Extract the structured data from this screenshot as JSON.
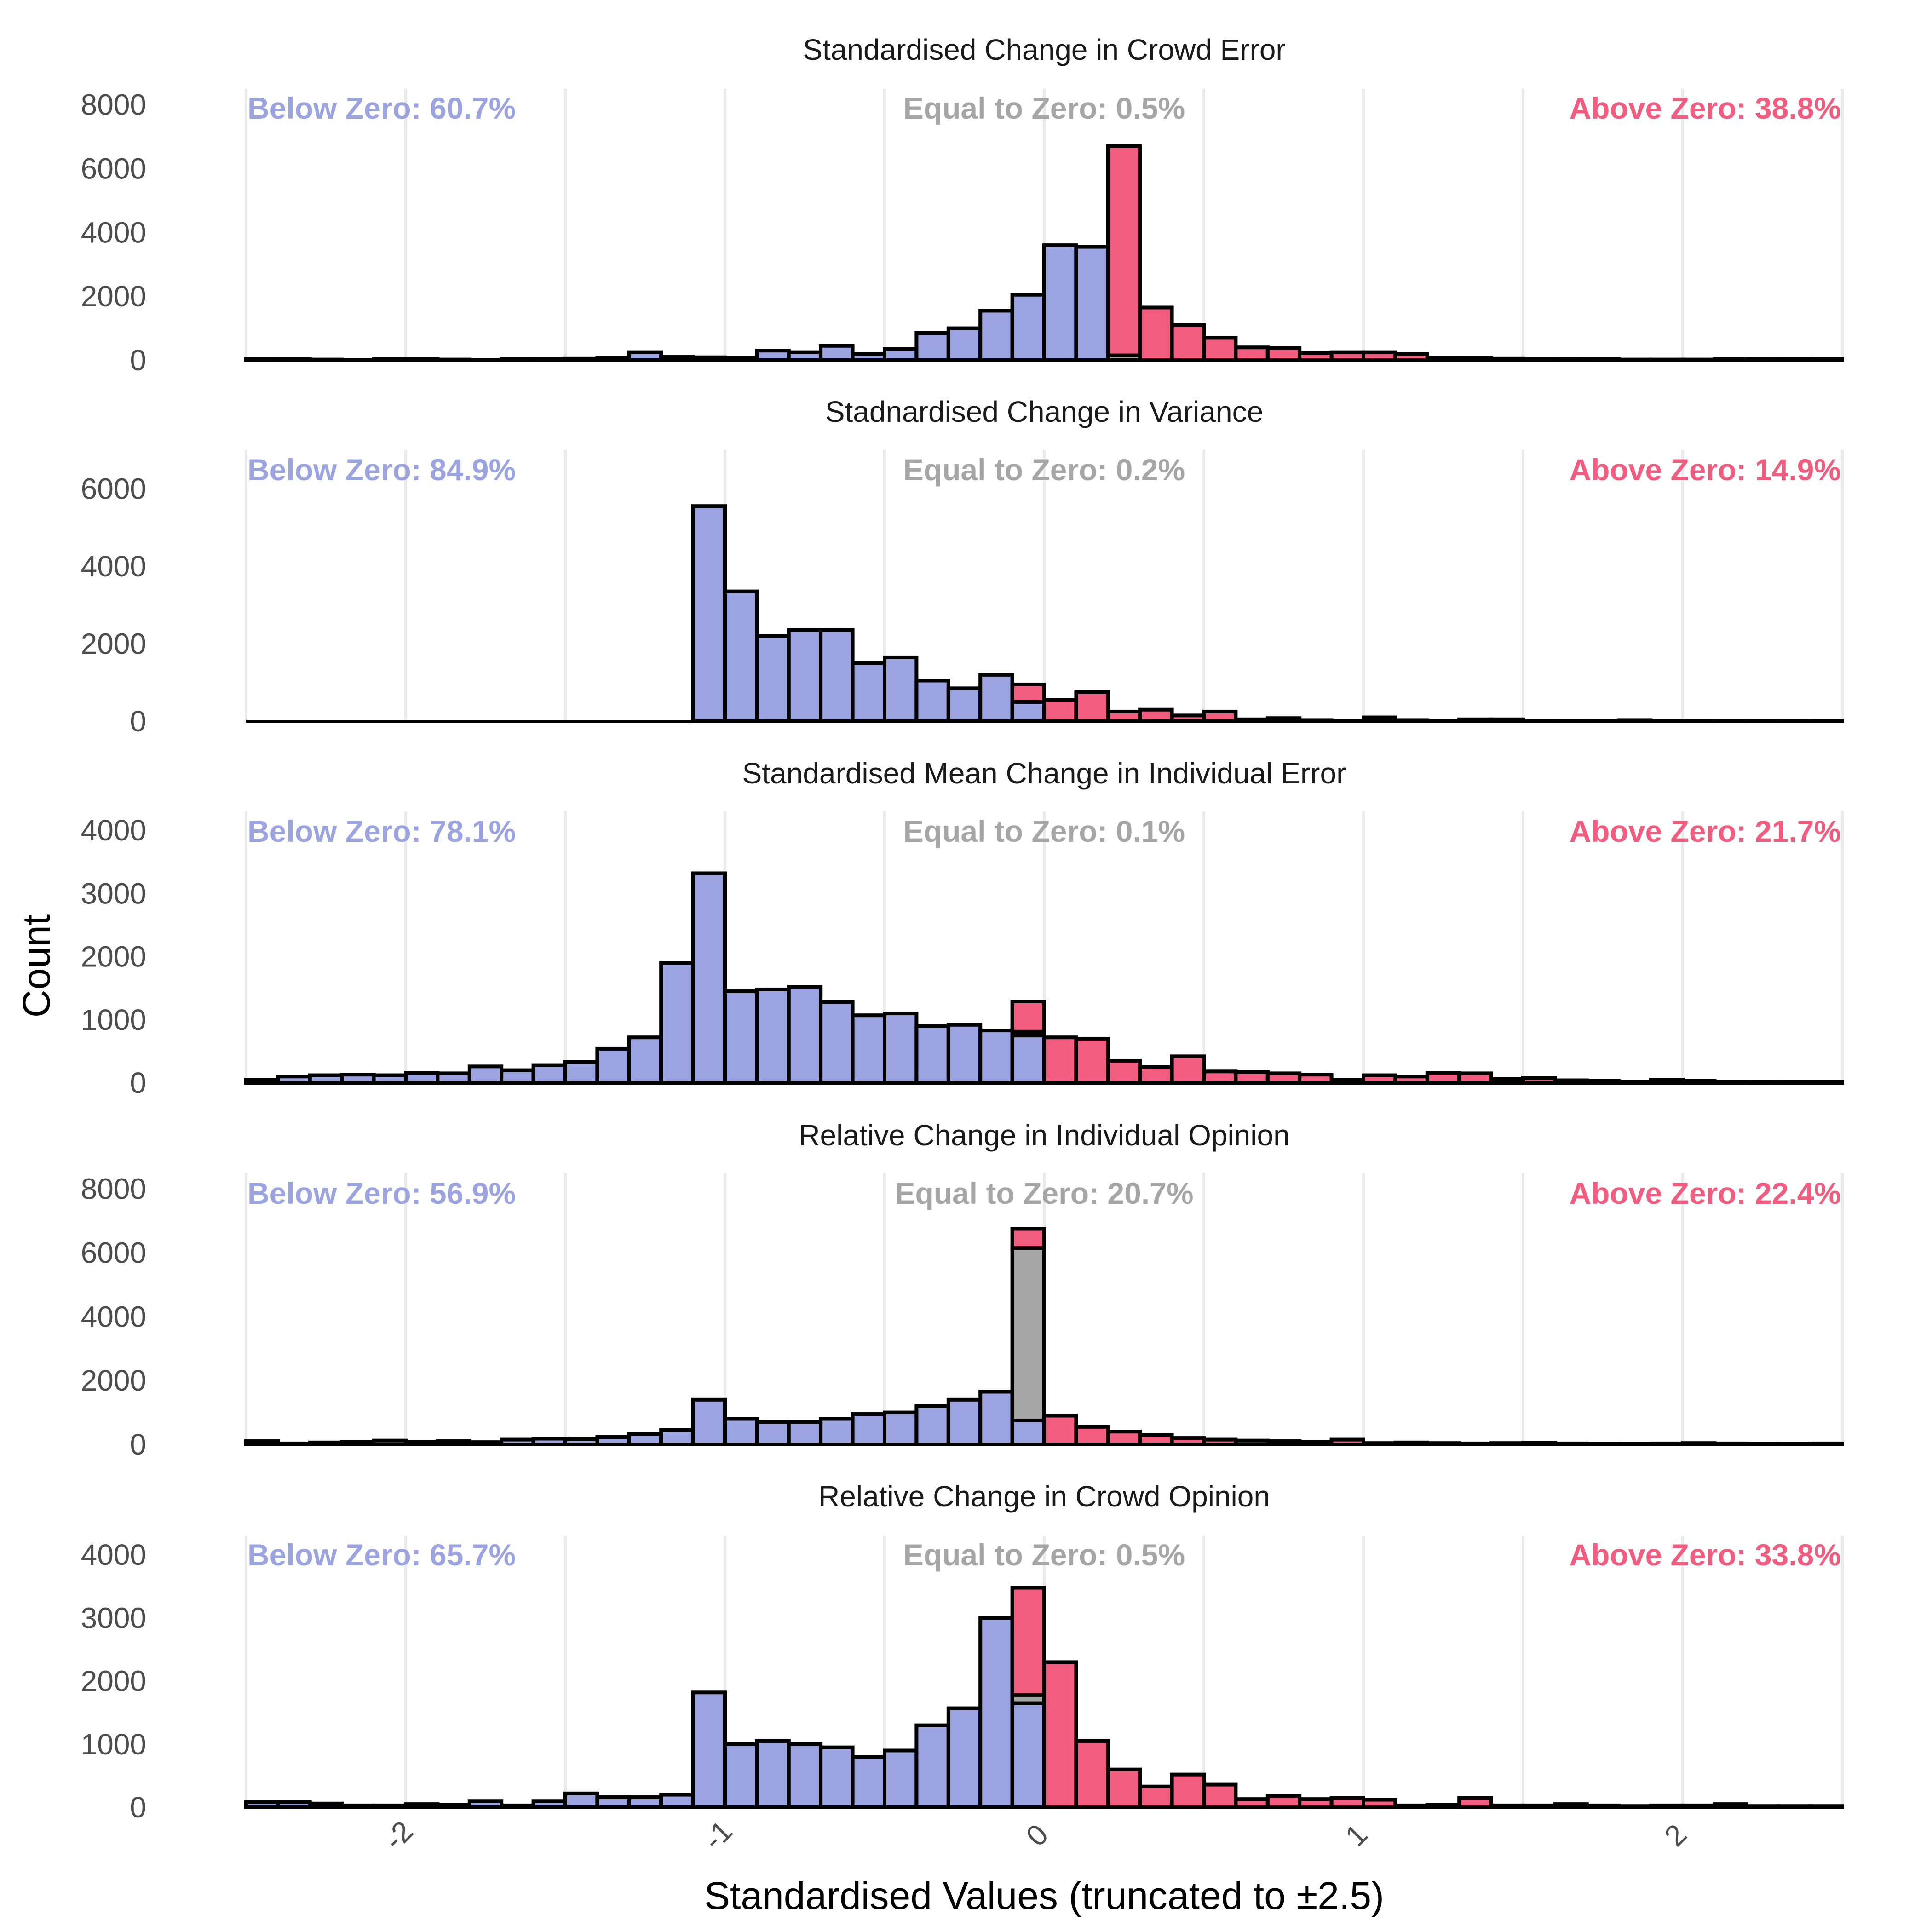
{
  "colors": {
    "below": "#9BA4E0",
    "equal": "#A6A6A6",
    "above": "#F25C7E"
  },
  "chart_data": {
    "type": "bar",
    "xlabel": "Standardised Values (truncated to ±2.5)",
    "ylabel": "Count",
    "xlim": [
      -2.5,
      2.5
    ],
    "x_ticks": [
      -2,
      -1,
      0,
      1,
      2
    ],
    "x_tick_labels": [
      "-2",
      "-1",
      "0",
      "1",
      "2"
    ],
    "grid": true,
    "bins": {
      "start": -2.5,
      "width": 0.1,
      "count": 50
    },
    "panels": [
      {
        "title": "Standardised Change in Crowd Error",
        "ylim": [
          0,
          8500
        ],
        "y_ticks": [
          0,
          2000,
          4000,
          6000,
          8000
        ],
        "annotations": {
          "below": "Below Zero: 60.7%",
          "equal": "Equal to Zero: 0.5%",
          "above": "Above Zero: 38.8%"
        },
        "series": [
          {
            "name": "below",
            "values": [
              40,
              40,
              20,
              10,
              40,
              40,
              20,
              10,
              40,
              40,
              60,
              80,
              250,
              100,
              90,
              80,
              300,
              250,
              450,
              200,
              350,
              850,
              1000,
              1550,
              2050,
              3600,
              3550,
              0,
              0,
              0,
              0,
              0,
              0,
              0,
              0,
              0,
              0,
              0,
              0,
              0,
              0,
              0,
              0,
              0,
              0,
              0,
              0,
              0,
              0,
              0
            ]
          },
          {
            "name": "equal",
            "values": [
              0,
              0,
              0,
              0,
              0,
              0,
              0,
              0,
              0,
              0,
              0,
              0,
              0,
              0,
              0,
              0,
              0,
              0,
              0,
              0,
              0,
              0,
              0,
              0,
              0,
              0,
              0,
              150,
              0,
              0,
              0,
              0,
              0,
              0,
              0,
              0,
              0,
              0,
              0,
              0,
              0,
              0,
              0,
              0,
              0,
              0,
              0,
              0,
              0,
              0
            ]
          },
          {
            "name": "above",
            "values": [
              0,
              0,
              0,
              0,
              0,
              0,
              0,
              0,
              0,
              0,
              0,
              0,
              0,
              0,
              0,
              0,
              0,
              0,
              0,
              0,
              0,
              0,
              0,
              0,
              0,
              0,
              0,
              6550,
              1650,
              1100,
              700,
              400,
              380,
              230,
              250,
              250,
              200,
              80,
              80,
              60,
              40,
              30,
              40,
              20,
              20,
              20,
              30,
              40,
              50,
              30
            ]
          }
        ]
      },
      {
        "title": "Stadnardised Change in Variance",
        "ylim": [
          0,
          7000
        ],
        "y_ticks": [
          0,
          2000,
          4000,
          6000
        ],
        "annotations": {
          "below": "Below Zero: 84.9%",
          "equal": "Equal to Zero: 0.2%",
          "above": "Above Zero: 14.9%"
        },
        "series": [
          {
            "name": "below",
            "values": [
              0,
              0,
              0,
              0,
              0,
              0,
              0,
              0,
              0,
              0,
              0,
              0,
              0,
              0,
              5550,
              3350,
              2200,
              2350,
              2350,
              1500,
              1650,
              1050,
              850,
              1200,
              500,
              0,
              0,
              0,
              0,
              0,
              0,
              0,
              0,
              0,
              0,
              0,
              0,
              0,
              0,
              0,
              0,
              0,
              0,
              0,
              0,
              0,
              0,
              0,
              0,
              0
            ]
          },
          {
            "name": "equal",
            "values": [
              0,
              0,
              0,
              0,
              0,
              0,
              0,
              0,
              0,
              0,
              0,
              0,
              0,
              0,
              0,
              0,
              0,
              0,
              0,
              0,
              0,
              0,
              0,
              0,
              0,
              0,
              0,
              0,
              0,
              0,
              0,
              0,
              0,
              0,
              0,
              0,
              0,
              0,
              0,
              0,
              0,
              0,
              0,
              0,
              0,
              0,
              0,
              0,
              0,
              0
            ]
          },
          {
            "name": "above",
            "values": [
              0,
              0,
              0,
              0,
              0,
              0,
              0,
              0,
              0,
              0,
              0,
              0,
              0,
              0,
              0,
              0,
              0,
              0,
              0,
              0,
              0,
              0,
              0,
              0,
              450,
              550,
              750,
              250,
              300,
              150,
              250,
              50,
              80,
              30,
              10,
              100,
              30,
              20,
              50,
              50,
              20,
              20,
              20,
              30,
              20,
              10,
              10,
              10,
              10,
              10
            ]
          }
        ]
      },
      {
        "title": "Standardised Mean Change in Individual Error",
        "ylim": [
          0,
          4300
        ],
        "y_ticks": [
          0,
          1000,
          2000,
          3000,
          4000
        ],
        "annotations": {
          "below": "Below Zero: 78.1%",
          "equal": "Equal to Zero: 0.1%",
          "above": "Above Zero: 21.7%"
        },
        "series": [
          {
            "name": "below",
            "values": [
              50,
              100,
              120,
              130,
              120,
              160,
              150,
              260,
              200,
              280,
              330,
              540,
              720,
              1900,
              3320,
              1450,
              1480,
              1520,
              1280,
              1070,
              1100,
              900,
              920,
              830,
              750,
              0,
              0,
              0,
              0,
              0,
              0,
              0,
              0,
              0,
              0,
              0,
              0,
              0,
              0,
              0,
              0,
              0,
              0,
              0,
              0,
              0,
              0,
              0,
              0,
              0
            ]
          },
          {
            "name": "equal",
            "values": [
              0,
              0,
              0,
              0,
              0,
              0,
              0,
              0,
              0,
              0,
              0,
              0,
              0,
              0,
              0,
              0,
              0,
              0,
              0,
              0,
              0,
              0,
              0,
              0,
              60,
              0,
              0,
              0,
              0,
              0,
              0,
              0,
              0,
              0,
              0,
              0,
              0,
              0,
              0,
              0,
              0,
              0,
              0,
              0,
              0,
              0,
              0,
              0,
              0,
              0
            ]
          },
          {
            "name": "above",
            "values": [
              0,
              0,
              0,
              0,
              0,
              0,
              0,
              0,
              0,
              0,
              0,
              0,
              0,
              0,
              0,
              0,
              0,
              0,
              0,
              0,
              0,
              0,
              0,
              0,
              480,
              720,
              700,
              350,
              250,
              420,
              180,
              170,
              150,
              130,
              50,
              120,
              100,
              160,
              150,
              60,
              80,
              40,
              30,
              20,
              50,
              30,
              20,
              20,
              20,
              20
            ]
          }
        ]
      },
      {
        "title": "Relative Change in Individual Opinion",
        "ylim": [
          0,
          8500
        ],
        "y_ticks": [
          0,
          2000,
          4000,
          6000,
          8000
        ],
        "annotations": {
          "below": "Below Zero: 56.9%",
          "equal": "Equal to Zero: 20.7%",
          "above": "Above Zero: 22.4%"
        },
        "series": [
          {
            "name": "below",
            "values": [
              100,
              30,
              60,
              80,
              120,
              80,
              100,
              70,
              150,
              180,
              160,
              230,
              320,
              450,
              1400,
              800,
              700,
              700,
              800,
              950,
              1000,
              1200,
              1400,
              1650,
              750,
              0,
              0,
              0,
              0,
              0,
              0,
              0,
              0,
              0,
              0,
              0,
              0,
              0,
              0,
              0,
              0,
              0,
              0,
              0,
              0,
              0,
              0,
              0,
              0,
              0
            ]
          },
          {
            "name": "equal",
            "values": [
              0,
              0,
              0,
              0,
              0,
              0,
              0,
              0,
              0,
              0,
              0,
              0,
              0,
              0,
              0,
              0,
              0,
              0,
              0,
              0,
              0,
              0,
              0,
              0,
              5400,
              0,
              0,
              0,
              0,
              0,
              0,
              0,
              0,
              0,
              0,
              0,
              0,
              0,
              0,
              0,
              0,
              0,
              0,
              0,
              0,
              0,
              0,
              0,
              0,
              0
            ]
          },
          {
            "name": "above",
            "values": [
              0,
              0,
              0,
              0,
              0,
              0,
              0,
              0,
              0,
              0,
              0,
              0,
              0,
              0,
              0,
              0,
              0,
              0,
              0,
              0,
              0,
              0,
              0,
              0,
              600,
              900,
              550,
              400,
              300,
              200,
              150,
              120,
              100,
              80,
              150,
              40,
              60,
              40,
              30,
              40,
              50,
              30,
              20,
              20,
              30,
              40,
              30,
              20,
              20,
              30
            ]
          }
        ]
      },
      {
        "title": "Relative Change in Crowd Opinion",
        "ylim": [
          0,
          4300
        ],
        "y_ticks": [
          0,
          1000,
          2000,
          3000,
          4000
        ],
        "annotations": {
          "below": "Below Zero: 65.7%",
          "equal": "Equal to Zero: 0.5%",
          "above": "Above Zero: 33.8%"
        },
        "series": [
          {
            "name": "below",
            "values": [
              80,
              80,
              60,
              30,
              30,
              50,
              40,
              100,
              30,
              100,
              220,
              160,
              160,
              200,
              1820,
              1000,
              1050,
              1000,
              950,
              800,
              900,
              1300,
              1570,
              3000,
              1650,
              0,
              0,
              0,
              0,
              0,
              0,
              0,
              0,
              0,
              0,
              0,
              0,
              0,
              0,
              0,
              0,
              0,
              0,
              0,
              0,
              0,
              0,
              0,
              0,
              0
            ]
          },
          {
            "name": "equal",
            "values": [
              0,
              0,
              0,
              0,
              0,
              0,
              0,
              0,
              0,
              0,
              0,
              0,
              0,
              0,
              0,
              0,
              0,
              0,
              0,
              0,
              0,
              0,
              0,
              0,
              130,
              0,
              0,
              0,
              0,
              0,
              0,
              0,
              0,
              0,
              0,
              0,
              0,
              0,
              0,
              0,
              0,
              0,
              0,
              0,
              0,
              0,
              0,
              0,
              0,
              0
            ]
          },
          {
            "name": "above",
            "values": [
              0,
              0,
              0,
              0,
              0,
              0,
              0,
              0,
              0,
              0,
              0,
              0,
              0,
              0,
              0,
              0,
              0,
              0,
              0,
              0,
              0,
              0,
              0,
              0,
              1700,
              2300,
              1050,
              600,
              330,
              520,
              360,
              130,
              180,
              130,
              150,
              120,
              30,
              40,
              150,
              30,
              30,
              50,
              30,
              20,
              30,
              30,
              50,
              20,
              20,
              20
            ]
          }
        ]
      }
    ]
  }
}
